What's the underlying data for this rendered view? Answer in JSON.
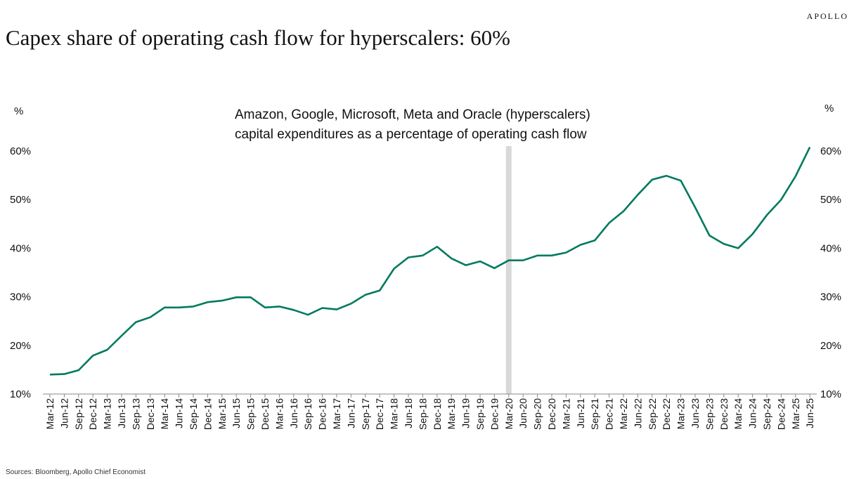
{
  "brand": "APOLLO",
  "title": "Capex share of operating cash flow for hyperscalers: 60%",
  "source": "Sources: Bloomberg, Apollo Chief Economist",
  "colors": {
    "line": "#007a5e",
    "recession": "#d9d9d9"
  },
  "chart_data": {
    "type": "line",
    "title": "Capex share of operating cash flow for hyperscalers: 60%",
    "annotation": [
      "Amazon, Google, Microsoft, Meta and Oracle (hyperscalers)",
      "capital expenditures as a percentage of operating cash flow"
    ],
    "ylabel_left": "%",
    "ylabel_right": "%",
    "ylim": [
      10,
      60
    ],
    "yticks": [
      10,
      20,
      30,
      40,
      50,
      60
    ],
    "ytick_labels": [
      "10%",
      "20%",
      "30%",
      "40%",
      "50%",
      "60%"
    ],
    "grid": false,
    "shaded_period": "Mar-20",
    "x": [
      "Mar-12",
      "Jun-12",
      "Sep-12",
      "Dec-12",
      "Mar-13",
      "Jun-13",
      "Sep-13",
      "Dec-13",
      "Mar-14",
      "Jun-14",
      "Sep-14",
      "Dec-14",
      "Mar-15",
      "Jun-15",
      "Sep-15",
      "Dec-15",
      "Mar-16",
      "Jun-16",
      "Sep-16",
      "Dec-16",
      "Mar-17",
      "Jun-17",
      "Sep-17",
      "Dec-17",
      "Mar-18",
      "Jun-18",
      "Sep-18",
      "Dec-18",
      "Mar-19",
      "Jun-19",
      "Sep-19",
      "Dec-19",
      "Mar-20",
      "Jun-20",
      "Sep-20",
      "Dec-20",
      "Mar-21",
      "Jun-21",
      "Sep-21",
      "Dec-21",
      "Mar-22",
      "Jun-22",
      "Sep-22",
      "Dec-22",
      "Mar-23",
      "Jun-23",
      "Sep-23",
      "Dec-23",
      "Mar-24",
      "Jun-24",
      "Sep-24",
      "Dec-24",
      "Mar-25",
      "Jun-25"
    ],
    "series": [
      {
        "values": [
          14.0,
          14.1,
          14.9,
          17.9,
          19.1,
          22.0,
          24.8,
          25.8,
          27.8,
          27.8,
          28.0,
          28.9,
          29.2,
          29.9,
          29.9,
          27.8,
          28.0,
          27.3,
          26.3,
          27.7,
          27.4,
          28.6,
          30.4,
          31.3,
          35.8,
          38.1,
          38.5,
          40.3,
          37.9,
          36.5,
          37.3,
          35.9,
          37.5,
          37.5,
          38.5,
          38.5,
          39.1,
          40.7,
          41.6,
          45.2,
          47.6,
          51.0,
          54.1,
          54.9,
          53.9,
          48.4,
          42.6,
          40.9,
          40.0,
          42.9,
          46.8,
          50.0,
          54.8,
          60.8
        ]
      }
    ]
  }
}
